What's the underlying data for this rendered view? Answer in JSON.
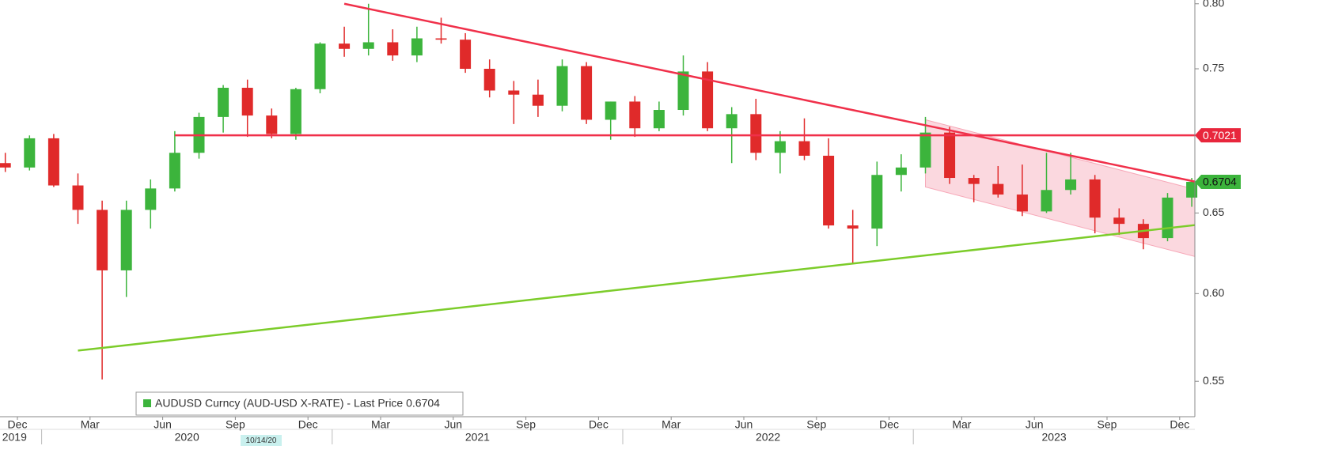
{
  "chart_data": {
    "type": "candlestick",
    "categories": [
      "2019-11",
      "2019-12",
      "2020-01",
      "2020-02",
      "2020-03",
      "2020-04",
      "2020-05",
      "2020-06",
      "2020-07",
      "2020-08",
      "2020-09",
      "2020-10",
      "2020-11",
      "2020-12",
      "2021-01",
      "2021-02",
      "2021-03",
      "2021-04",
      "2021-05",
      "2021-06",
      "2021-07",
      "2021-08",
      "2021-09",
      "2021-10",
      "2021-11",
      "2021-12",
      "2022-01",
      "2022-02",
      "2022-03",
      "2022-04",
      "2022-05",
      "2022-06",
      "2022-07",
      "2022-08",
      "2022-09",
      "2022-10",
      "2022-11",
      "2022-12",
      "2023-01",
      "2023-02",
      "2023-03",
      "2023-04",
      "2023-05",
      "2023-06",
      "2023-07",
      "2023-08",
      "2023-09",
      "2023-10",
      "2023-11",
      "2023-12"
    ],
    "series": [
      {
        "name": "AUDUSD Curncy (AUD-USD X-RATE) - Last Price 0.6704",
        "legend_color": "#3cb43c",
        "up_color": "#3cb43c",
        "down_color": "#e02a2a",
        "open": [
          0.683,
          0.68,
          0.7,
          0.668,
          0.652,
          0.614,
          0.652,
          0.666,
          0.69,
          0.715,
          0.736,
          0.716,
          0.703,
          0.735,
          0.769,
          0.765,
          0.77,
          0.76,
          0.773,
          0.772,
          0.75,
          0.734,
          0.731,
          0.723,
          0.752,
          0.713,
          0.726,
          0.707,
          0.72,
          0.748,
          0.707,
          0.717,
          0.69,
          0.698,
          0.688,
          0.642,
          0.64,
          0.675,
          0.68,
          0.704,
          0.673,
          0.669,
          0.662,
          0.651,
          0.665,
          0.672,
          0.647,
          0.643,
          0.634,
          0.66
        ],
        "high": [
          0.69,
          0.702,
          0.703,
          0.676,
          0.658,
          0.658,
          0.672,
          0.705,
          0.718,
          0.738,
          0.742,
          0.721,
          0.736,
          0.77,
          0.782,
          0.8,
          0.78,
          0.782,
          0.789,
          0.777,
          0.757,
          0.741,
          0.742,
          0.757,
          0.755,
          0.726,
          0.73,
          0.726,
          0.76,
          0.755,
          0.722,
          0.728,
          0.705,
          0.714,
          0.7,
          0.652,
          0.684,
          0.689,
          0.715,
          0.708,
          0.675,
          0.681,
          0.682,
          0.69,
          0.69,
          0.675,
          0.653,
          0.646,
          0.663,
          0.673
        ],
        "low": [
          0.677,
          0.678,
          0.667,
          0.643,
          0.551,
          0.598,
          0.64,
          0.664,
          0.686,
          0.704,
          0.701,
          0.7,
          0.699,
          0.732,
          0.759,
          0.76,
          0.756,
          0.755,
          0.769,
          0.747,
          0.729,
          0.71,
          0.715,
          0.719,
          0.71,
          0.699,
          0.701,
          0.705,
          0.716,
          0.705,
          0.683,
          0.685,
          0.676,
          0.685,
          0.64,
          0.618,
          0.629,
          0.664,
          0.676,
          0.669,
          0.657,
          0.66,
          0.648,
          0.65,
          0.662,
          0.637,
          0.636,
          0.627,
          0.632,
          0.654
        ],
        "close": [
          0.68,
          0.7,
          0.668,
          0.652,
          0.614,
          0.652,
          0.666,
          0.69,
          0.715,
          0.736,
          0.716,
          0.703,
          0.735,
          0.769,
          0.765,
          0.77,
          0.76,
          0.773,
          0.772,
          0.75,
          0.734,
          0.731,
          0.723,
          0.752,
          0.713,
          0.726,
          0.707,
          0.72,
          0.748,
          0.707,
          0.717,
          0.69,
          0.698,
          0.688,
          0.642,
          0.64,
          0.675,
          0.68,
          0.704,
          0.673,
          0.669,
          0.662,
          0.651,
          0.665,
          0.672,
          0.647,
          0.643,
          0.634,
          0.66,
          0.6704
        ]
      }
    ],
    "ylim": [
      0.531,
      0.803
    ],
    "log_scale": true,
    "yticks": [
      {
        "value": 0.55,
        "label": "0.55"
      },
      {
        "value": 0.6,
        "label": "0.60"
      },
      {
        "value": 0.65,
        "label": "0.65"
      },
      {
        "value": 0.75,
        "label": "0.75"
      },
      {
        "value": 0.8,
        "label": "0.80"
      }
    ],
    "xticks": [
      {
        "value": "2019-12",
        "label": "Dec"
      },
      {
        "value": "2020-03",
        "label": "Mar"
      },
      {
        "value": "2020-06",
        "label": "Jun"
      },
      {
        "value": "2020-09",
        "label": "Sep"
      },
      {
        "value": "2020-12",
        "label": "Dec"
      },
      {
        "value": "2021-03",
        "label": "Mar"
      },
      {
        "value": "2021-06",
        "label": "Jun"
      },
      {
        "value": "2021-09",
        "label": "Sep"
      },
      {
        "value": "2021-12",
        "label": "Dec"
      },
      {
        "value": "2022-03",
        "label": "Mar"
      },
      {
        "value": "2022-06",
        "label": "Jun"
      },
      {
        "value": "2022-09",
        "label": "Sep"
      },
      {
        "value": "2022-12",
        "label": "Dec"
      },
      {
        "value": "2023-03",
        "label": "Mar"
      },
      {
        "value": "2023-06",
        "label": "Jun"
      },
      {
        "value": "2023-09",
        "label": "Sep"
      },
      {
        "value": "2023-12",
        "label": "Dec"
      }
    ],
    "year_labels": [
      "2019",
      "2020",
      "2021",
      "2022",
      "2023"
    ],
    "cursor_label": "10/14/20",
    "lines": [
      {
        "color": "#f0304a",
        "points": [
          [
            "2021-01",
            0.8
          ],
          [
            "2023-12",
            0.671
          ]
        ]
      },
      {
        "color": "#f0304a",
        "points": [
          [
            "2020-06",
            0.7021
          ],
          [
            "2023-12",
            0.7021
          ]
        ]
      },
      {
        "color": "#7ccc2a",
        "points": [
          [
            "2020-02",
            0.567
          ],
          [
            "2023-12",
            0.642
          ]
        ]
      }
    ],
    "channel": {
      "color": "#f7a8b8",
      "upper": [
        [
          "2023-01",
          0.713
        ],
        [
          "2023-12",
          0.666
        ]
      ],
      "lower": [
        [
          "2023-01",
          0.667
        ],
        [
          "2023-12",
          0.623
        ]
      ]
    },
    "price_labels": [
      {
        "value": 0.7021,
        "color": "#e8263c",
        "text_color": "#ffffff"
      },
      {
        "value": 0.6704,
        "color": "#3cb43c",
        "text_color": "#111111"
      }
    ]
  }
}
